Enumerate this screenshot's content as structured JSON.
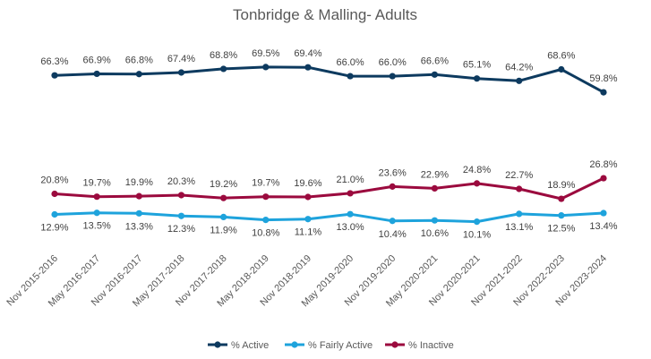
{
  "chart_data": {
    "type": "line",
    "title": "Tonbridge & Malling- Adults",
    "xlabel": "",
    "ylabel": "",
    "ylim": [
      0,
      75
    ],
    "grid": false,
    "legend_position": "bottom",
    "value_suffix": "%",
    "categories": [
      "Nov 2015-2016",
      "May 2016-2017",
      "Nov 2016-2017",
      "May 2017-2018",
      "Nov 2017-2018",
      "May 2018-2019",
      "Nov 2018-2019",
      "May 2019-2020",
      "Nov 2019-2020",
      "May 2020-2021",
      "Nov 2020-2021",
      "Nov 2021-2022",
      "Nov 2022-2023",
      "Nov 2023-2024"
    ],
    "series": [
      {
        "name": "% Active",
        "color": "#0d3a5f",
        "label_position": "above",
        "values": [
          66.3,
          66.9,
          66.8,
          67.4,
          68.8,
          69.5,
          69.4,
          66.0,
          66.0,
          66.6,
          65.1,
          64.2,
          68.6,
          59.8
        ]
      },
      {
        "name": "% Fairly Active",
        "color": "#1ea3dc",
        "label_position": "below",
        "values": [
          12.9,
          13.5,
          13.3,
          12.3,
          11.9,
          10.8,
          11.1,
          13.0,
          10.4,
          10.6,
          10.1,
          13.1,
          12.5,
          13.4
        ]
      },
      {
        "name": "% Inactive",
        "color": "#9b0a3e",
        "label_position": "above",
        "values": [
          20.8,
          19.7,
          19.9,
          20.3,
          19.2,
          19.7,
          19.6,
          21.0,
          23.6,
          22.9,
          24.8,
          22.7,
          18.9,
          26.8
        ]
      }
    ]
  }
}
